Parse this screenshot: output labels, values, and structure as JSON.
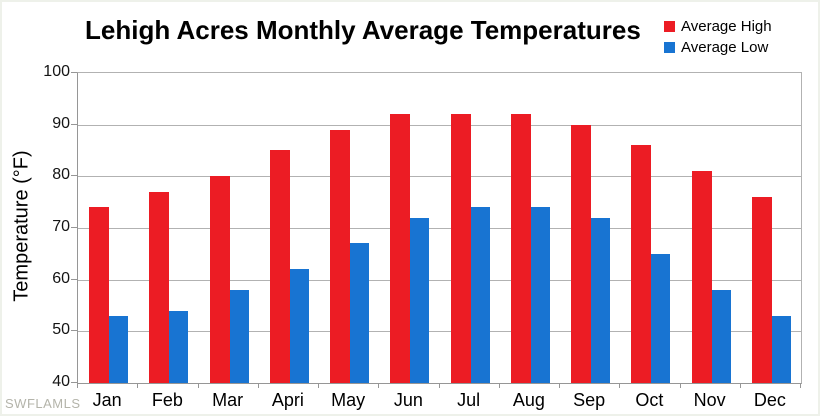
{
  "title": "Lehigh Acres Monthly Average Temperatures",
  "watermark": "SWFLAMLS",
  "legend": [
    {
      "label": "Average High",
      "color": "#ec1c24"
    },
    {
      "label": "Average Low",
      "color": "#1874d2"
    }
  ],
  "chart_data": {
    "type": "bar",
    "title": "Lehigh Acres Monthly Average Temperatures",
    "categories": [
      "Jan",
      "Feb",
      "Mar",
      "Apri",
      "May",
      "Jun",
      "Jul",
      "Aug",
      "Sep",
      "Oct",
      "Nov",
      "Dec"
    ],
    "series": [
      {
        "name": "Average High",
        "color": "#ec1c24",
        "values": [
          74,
          77,
          80,
          85,
          89,
          92,
          92,
          92,
          90,
          86,
          81,
          76
        ]
      },
      {
        "name": "Average Low",
        "color": "#1874d2",
        "values": [
          53,
          54,
          58,
          62,
          67,
          72,
          74,
          74,
          72,
          65,
          58,
          53
        ]
      }
    ],
    "xlabel": "",
    "ylabel": "Temperature (°F)",
    "ylim": [
      40,
      100
    ],
    "yticks": [
      40,
      50,
      60,
      70,
      80,
      90,
      100
    ],
    "grid": true,
    "legend_position": "top-right",
    "colors": {
      "grid": "#b2b2b2",
      "axis": "#969696",
      "title_text": "#000000",
      "watermark_text": "#b4b4aa"
    }
  }
}
